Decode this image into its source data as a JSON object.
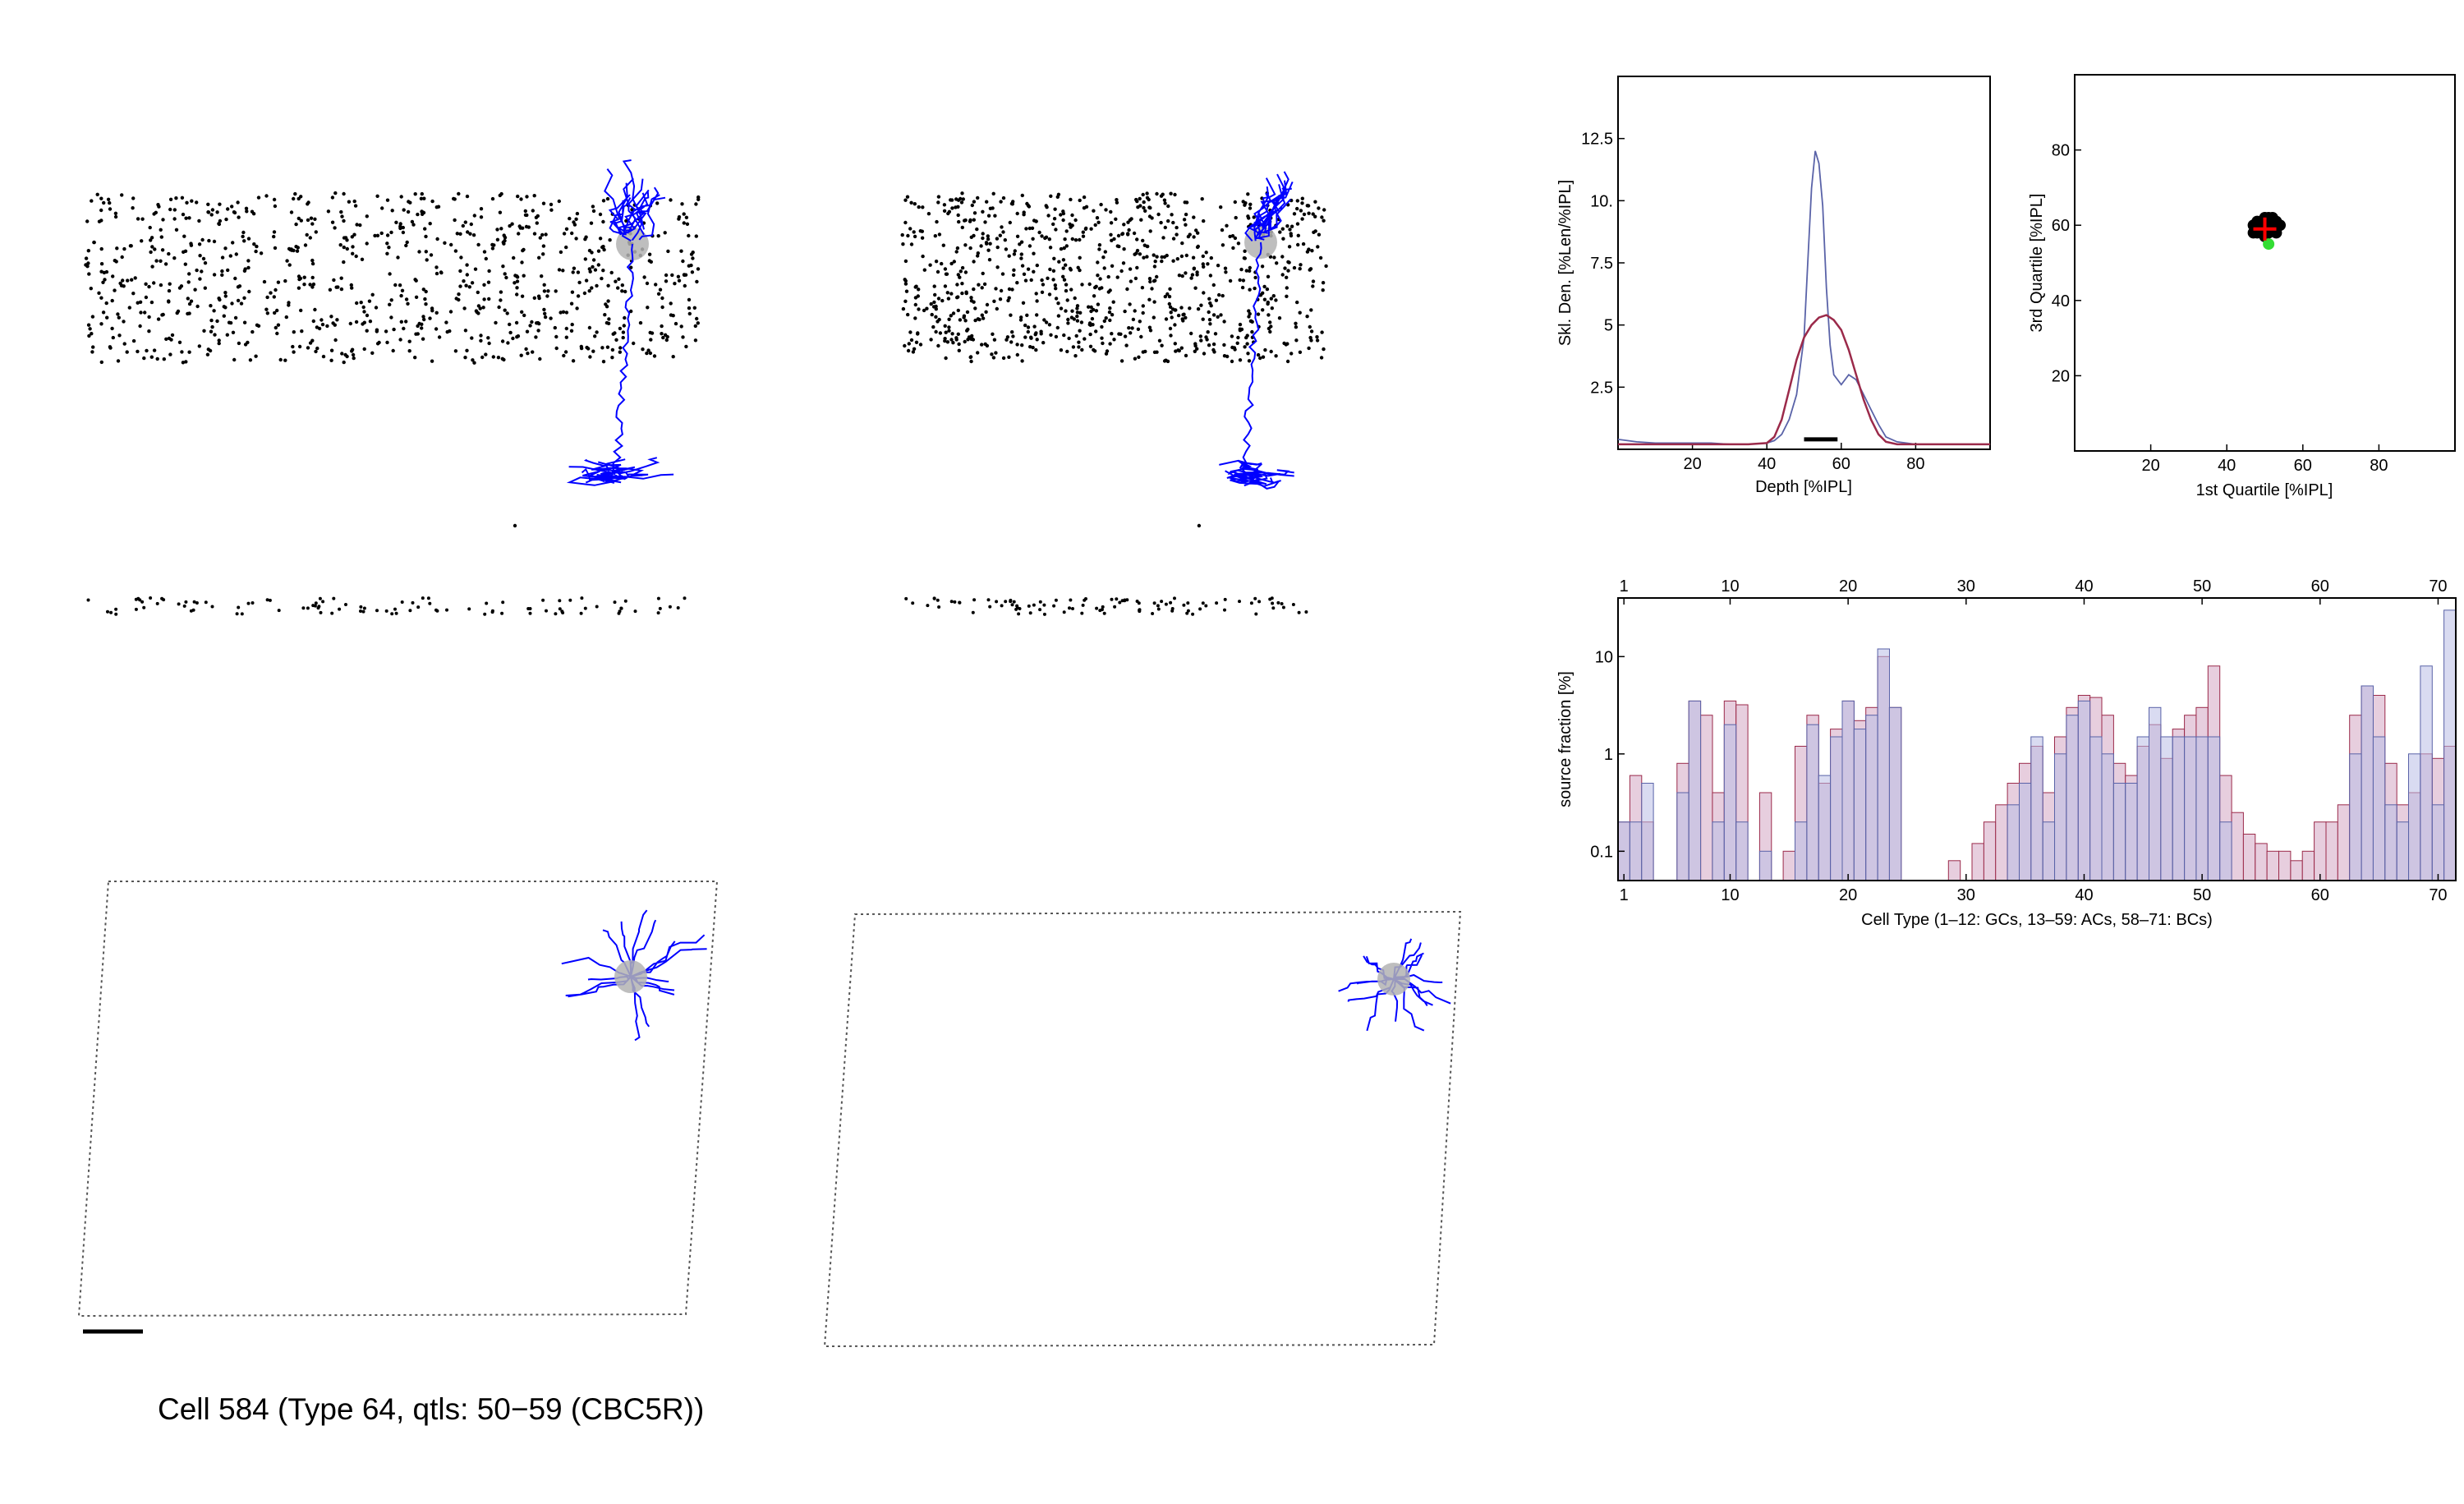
{
  "caption": "Cell 584 (Type 64, qtls: 50−59 (CBC5R))",
  "colors": {
    "neuron": "#0000ff",
    "soma": "#b3b3b3",
    "dots": "#000000",
    "blue_series": "#5a63a8",
    "red_series": "#9b2a4a",
    "pink_fill": "#e3c6d8",
    "blue_fill": "#b9bde6",
    "scatter_center": "#ff0000",
    "scatter_highlight": "#33dd33"
  },
  "chart_data": [
    {
      "type": "line",
      "xlabel": "Depth [%IPL]",
      "ylabel": "Skl. Den. [%Len/%IPL]",
      "xlim": [
        0,
        100
      ],
      "ylim": [
        0,
        15
      ],
      "xticks": [
        "20",
        "40",
        "60",
        "80"
      ],
      "xtick_values": [
        20,
        40,
        60,
        80
      ],
      "yticks": [
        "2.5",
        "5",
        "7.5",
        "10.",
        "12.5"
      ],
      "ytick_values": [
        2.5,
        5,
        7.5,
        10,
        12.5
      ],
      "series": [
        {
          "x": [
            0,
            5,
            10,
            15,
            20,
            25,
            30,
            35,
            40,
            42,
            44,
            46,
            48,
            50,
            51,
            52,
            53,
            54,
            55,
            56,
            57,
            58,
            60,
            62,
            64,
            66,
            68,
            70,
            72,
            75,
            80,
            90,
            100
          ],
          "y": [
            0.4,
            0.3,
            0.25,
            0.25,
            0.25,
            0.25,
            0.2,
            0.2,
            0.25,
            0.35,
            0.6,
            1.2,
            2.2,
            4.5,
            7.5,
            10.5,
            12.0,
            11.5,
            9.8,
            6.5,
            4.2,
            3.0,
            2.6,
            3.0,
            2.8,
            2.2,
            1.6,
            1.0,
            0.5,
            0.3,
            0.2,
            0.2,
            0.2
          ]
        },
        {
          "x": [
            0,
            10,
            20,
            30,
            35,
            40,
            42,
            44,
            46,
            48,
            50,
            52,
            54,
            56,
            58,
            60,
            62,
            64,
            66,
            68,
            70,
            72,
            75,
            80,
            90,
            100
          ],
          "y": [
            0.2,
            0.2,
            0.2,
            0.2,
            0.2,
            0.25,
            0.5,
            1.2,
            2.4,
            3.6,
            4.5,
            5.0,
            5.3,
            5.4,
            5.2,
            4.8,
            4.0,
            3.0,
            2.0,
            1.2,
            0.6,
            0.3,
            0.2,
            0.2,
            0.2,
            0.2
          ]
        }
      ],
      "range_bar": [
        50,
        59
      ]
    },
    {
      "type": "scatter",
      "xlabel": "1st Quartile [%IPL]",
      "ylabel": "3rd Quartile [%IPL]",
      "xlim": [
        0,
        100
      ],
      "ylim": [
        0,
        100
      ],
      "xticks": [
        "20",
        "40",
        "60",
        "80"
      ],
      "xtick_values": [
        20,
        40,
        60,
        80
      ],
      "yticks": [
        "20",
        "40",
        "60",
        "80"
      ],
      "ytick_values": [
        20,
        40,
        60,
        80
      ],
      "points": [
        [
          48,
          58
        ],
        [
          50,
          59
        ],
        [
          52,
          60
        ],
        [
          49,
          61
        ],
        [
          51,
          62
        ],
        [
          53,
          58
        ],
        [
          47,
          60
        ],
        [
          50,
          57
        ],
        [
          52,
          61
        ],
        [
          48,
          59
        ],
        [
          51,
          60
        ],
        [
          53,
          61
        ],
        [
          49,
          58
        ],
        [
          50,
          62
        ],
        [
          52,
          59
        ],
        [
          54,
          60
        ],
        [
          47,
          58
        ],
        [
          51,
          58
        ],
        [
          50,
          60
        ],
        [
          49,
          60
        ],
        [
          53,
          59
        ],
        [
          48,
          61
        ],
        [
          52,
          62
        ],
        [
          51,
          61
        ]
      ],
      "center": [
        50,
        59
      ],
      "highlight": [
        51,
        55
      ]
    },
    {
      "type": "bar",
      "xlabel": "Cell Type (1–12: GCs, 13–59: ACs, 58–71: BCs)",
      "ylabel": "source fraction [%]",
      "ylog": true,
      "ylim": [
        0.05,
        40
      ],
      "xlim": [
        0.5,
        71.5
      ],
      "xticks": [
        "1",
        "10",
        "20",
        "30",
        "40",
        "50",
        "60",
        "70"
      ],
      "xtick_values": [
        1,
        10,
        20,
        30,
        40,
        50,
        60,
        70
      ],
      "yticks": [
        "0.1",
        "1",
        "10"
      ],
      "ytick_values": [
        0.1,
        1,
        10
      ],
      "categories": [
        1,
        2,
        3,
        4,
        5,
        6,
        7,
        8,
        9,
        10,
        11,
        12,
        13,
        14,
        15,
        16,
        17,
        18,
        19,
        20,
        21,
        22,
        23,
        24,
        25,
        26,
        27,
        28,
        29,
        30,
        31,
        32,
        33,
        34,
        35,
        36,
        37,
        38,
        39,
        40,
        41,
        42,
        43,
        44,
        45,
        46,
        47,
        48,
        49,
        50,
        51,
        52,
        53,
        54,
        55,
        56,
        57,
        58,
        59,
        60,
        61,
        62,
        63,
        64,
        65,
        66,
        67,
        68,
        69,
        70,
        71
      ],
      "series": [
        {
          "values": [
            0.2,
            0.6,
            0.2,
            0,
            0,
            0.8,
            3.5,
            2.5,
            0.4,
            3.5,
            3.2,
            0,
            0.4,
            0,
            0.1,
            1.2,
            2.5,
            0.5,
            1.8,
            3.5,
            2.2,
            3.0,
            10.0,
            3.0,
            0,
            0,
            0,
            0,
            0.08,
            0,
            0.12,
            0.2,
            0.3,
            0.5,
            0.8,
            1.2,
            0.4,
            1.5,
            3.0,
            4.0,
            3.8,
            2.5,
            0.8,
            0.6,
            1.2,
            2.0,
            0.9,
            1.8,
            2.5,
            3.0,
            8.0,
            0.6,
            0.25,
            0.15,
            0.12,
            0.1,
            0.1,
            0.08,
            0.1,
            0.2,
            0.2,
            0.3,
            2.5,
            5.0,
            4.0,
            0.8,
            0.3,
            0.4,
            1.0,
            0.9,
            1.2
          ]
        },
        {
          "values": [
            0.2,
            0.2,
            0.5,
            0,
            0,
            0.4,
            3.5,
            0,
            0.2,
            2.0,
            0.2,
            0,
            0.1,
            0,
            0,
            0.2,
            2.0,
            0.6,
            1.5,
            3.5,
            1.8,
            2.5,
            12.0,
            3.0,
            0,
            0,
            0,
            0,
            0,
            0,
            0,
            0,
            0,
            0.3,
            0.5,
            1.5,
            0.2,
            1.0,
            2.5,
            3.5,
            1.5,
            1.0,
            0.5,
            0.5,
            1.5,
            3.0,
            1.5,
            1.5,
            1.5,
            1.5,
            1.5,
            0.2,
            0,
            0,
            0,
            0,
            0,
            0,
            0,
            0,
            0,
            0,
            1.0,
            5.0,
            1.5,
            0.3,
            0.2,
            1.0,
            8.0,
            0.3,
            30.0
          ]
        }
      ]
    }
  ]
}
